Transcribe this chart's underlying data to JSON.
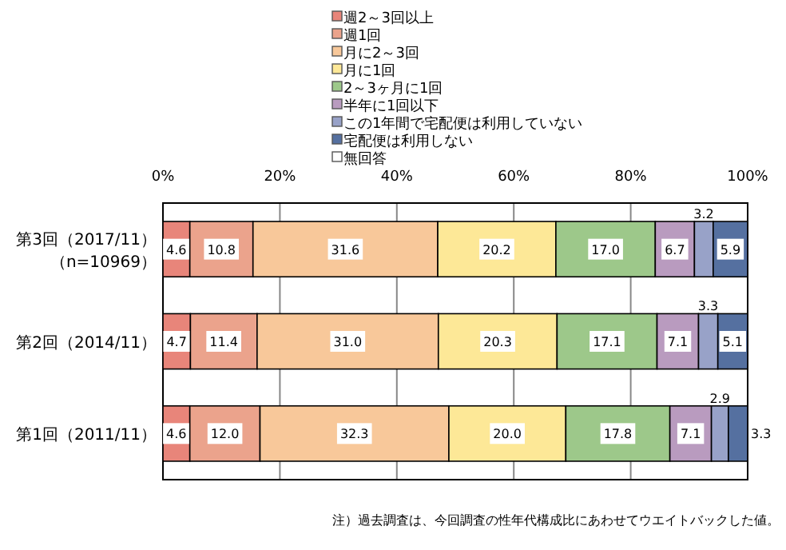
{
  "chart_data": {
    "type": "bar",
    "orientation": "horizontal",
    "stacked": true,
    "categories": [
      "第3回（2017/11）（n=10969）",
      "第2回（2014/11）",
      "第1回（2011/11）"
    ],
    "series": [
      {
        "name": "週2～3回以上",
        "color": "#e8857a",
        "values": [
          4.6,
          4.7,
          4.6
        ],
        "value_labels": [
          "4.6",
          "4.7",
          "4.6"
        ]
      },
      {
        "name": "週1回",
        "color": "#eba38c",
        "values": [
          10.8,
          11.4,
          12.0
        ],
        "value_labels": [
          "10.8",
          "11.4",
          "12.0"
        ]
      },
      {
        "name": "月に2～3回",
        "color": "#f8c89a",
        "values": [
          31.6,
          31.0,
          32.3
        ],
        "value_labels": [
          "31.6",
          "31.0",
          "32.3"
        ]
      },
      {
        "name": "月に1回",
        "color": "#fde897",
        "values": [
          20.2,
          20.3,
          20.0
        ],
        "value_labels": [
          "20.2",
          "20.3",
          "20.0"
        ]
      },
      {
        "name": "2～3ヶ月に1回",
        "color": "#9dc88a",
        "values": [
          17.0,
          17.1,
          17.8
        ],
        "value_labels": [
          "17.0",
          "17.1",
          "17.8"
        ]
      },
      {
        "name": "半年に1回以下",
        "color": "#b99bbf",
        "values": [
          6.7,
          7.1,
          7.1
        ],
        "value_labels": [
          "6.7",
          "7.1",
          "7.1"
        ]
      },
      {
        "name": "この1年間で宅配便は利用していない",
        "color": "#98a2c8",
        "values": [
          3.2,
          3.3,
          2.9
        ],
        "value_labels": [
          "3.2",
          "3.3",
          "2.9"
        ]
      },
      {
        "name": "宅配便は利用しない",
        "color": "#5570a0",
        "values": [
          5.9,
          5.1,
          3.3
        ],
        "value_labels": [
          "5.9",
          "5.1",
          "3.3"
        ]
      },
      {
        "name": "無回答",
        "color": "#ffffff",
        "values": [
          null,
          null,
          null
        ]
      }
    ],
    "xlim": [
      0,
      100
    ],
    "xticks": [
      {
        "value": 0,
        "label": "0%"
      },
      {
        "value": 20,
        "label": "20%"
      },
      {
        "value": 40,
        "label": "40%"
      },
      {
        "value": 60,
        "label": "60%"
      },
      {
        "value": 80,
        "label": "80%"
      },
      {
        "value": 100,
        "label": "100%"
      }
    ],
    "grid": "x",
    "legend": "top",
    "annotations": [
      "注）過去調査は、今回調査の性年代構成比にあわせてウエイトバックした値。"
    ]
  }
}
